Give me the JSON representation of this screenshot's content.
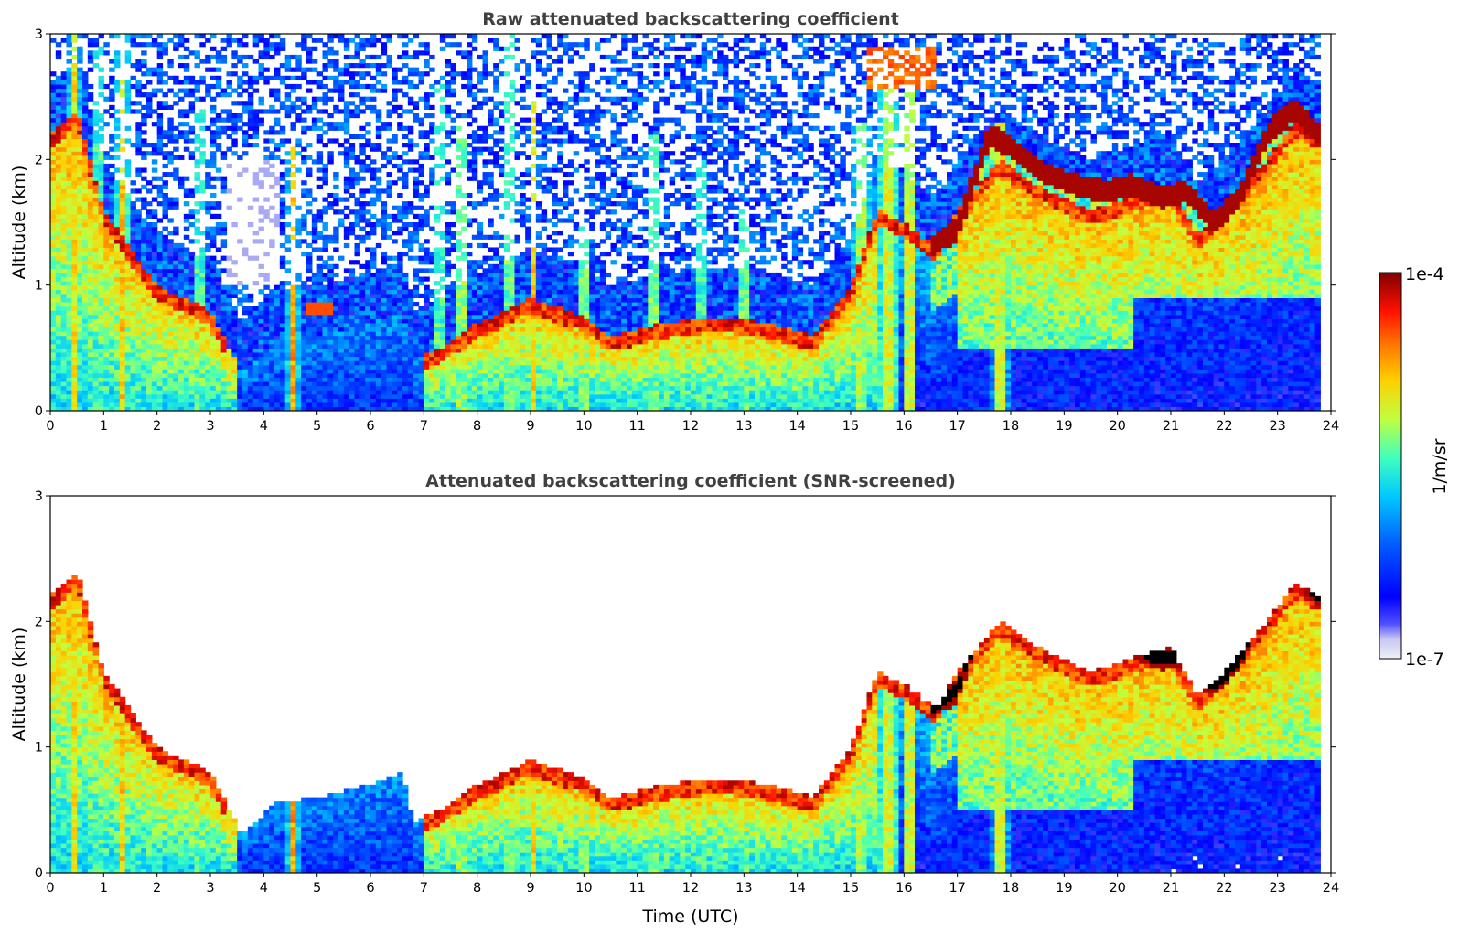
{
  "chart_data": [
    {
      "type": "heatmap",
      "title": "Raw attenuated backscattering coefficient",
      "xlabel": "",
      "ylabel": "Altitude (km)",
      "xlim": [
        0,
        24
      ],
      "ylim": [
        0,
        3
      ],
      "xticks": [
        0,
        1,
        2,
        3,
        4,
        5,
        6,
        7,
        8,
        9,
        10,
        11,
        12,
        13,
        14,
        15,
        16,
        17,
        18,
        19,
        20,
        21,
        22,
        23,
        24
      ],
      "yticks": [
        0,
        1,
        2,
        3
      ],
      "data_extent_hours": [
        0,
        23.8
      ],
      "screened": false,
      "features": [
        {
          "name": "boundary layer aerosol",
          "time_range": [
            0,
            3.5
          ],
          "top_km": [
            2.4,
            0.6
          ]
        },
        {
          "name": "elevated layer",
          "time_range": [
            4.8,
            5.3
          ],
          "altitude_km": 0.8
        },
        {
          "name": "convective plumes",
          "time_range": [
            7.3,
            10.5
          ],
          "top_km": 2.9
        },
        {
          "name": "mid-level cloud",
          "time_range": [
            15.3,
            16.6
          ],
          "altitude_km": 2.7
        },
        {
          "name": "cloud base layer",
          "time_range": [
            16.5,
            23.8
          ],
          "altitude_km": [
            1.3,
            2.3
          ]
        }
      ]
    },
    {
      "type": "heatmap",
      "title": "Attenuated backscattering coefficient (SNR-screened)",
      "xlabel": "Time (UTC)",
      "ylabel": "Altitude (km)",
      "xlim": [
        0,
        24
      ],
      "ylim": [
        0,
        3
      ],
      "xticks": [
        0,
        1,
        2,
        3,
        4,
        5,
        6,
        7,
        8,
        9,
        10,
        11,
        12,
        13,
        14,
        15,
        16,
        17,
        18,
        19,
        20,
        21,
        22,
        23,
        24
      ],
      "yticks": [
        0,
        1,
        2,
        3
      ],
      "data_extent_hours": [
        0,
        23.8
      ],
      "screened": true
    }
  ],
  "colorbar": {
    "label": "1/m/sr",
    "max_label": "1e-4",
    "min_label": "1e-7",
    "scale": "log",
    "range": [
      1e-07,
      0.0001
    ],
    "colormap": [
      "#eaeaf5",
      "#c8c8f0",
      "#0000ff",
      "#0060ff",
      "#00c8ff",
      "#40ffbf",
      "#bfff40",
      "#ffd000",
      "#ff7000",
      "#ff1000",
      "#800000"
    ]
  }
}
